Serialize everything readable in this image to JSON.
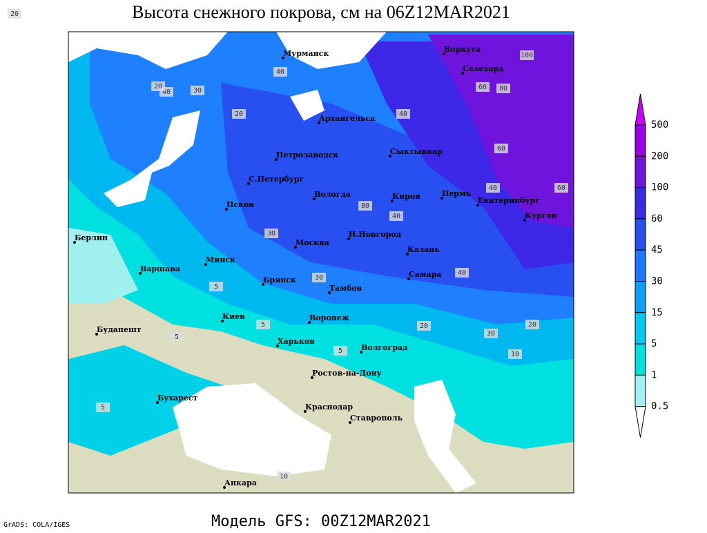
{
  "header": {
    "title": "Высота снежного покрова, см на 06Z12MAR2021"
  },
  "footer": {
    "credit": "GrADS: COLA/IGES",
    "model": "Модель GFS: 00Z12MAR2021"
  },
  "legend": {
    "levels": [
      500,
      200,
      100,
      60,
      45,
      30,
      15,
      5,
      1,
      0.5
    ],
    "colors": [
      "#c800ff",
      "#9a00e6",
      "#6e14dc",
      "#3c28e6",
      "#2850f0",
      "#1e78ff",
      "#0aa0ff",
      "#00c8f0",
      "#00e0e0",
      "#a0f0f0",
      "#ffffff"
    ]
  },
  "cities": [
    "Мурманск",
    "Воркута",
    "Салехард",
    "Архангельск",
    "Сыктывкар",
    "Петрозаводск",
    "С.Петербург",
    "Вологда",
    "Киров",
    "Пермь",
    "Екатеринбург",
    "Курган",
    "Псков",
    "Берлин",
    "Москва",
    "Н.Новгород",
    "Казань",
    "Варшава",
    "Минск",
    "Брянск",
    "Тамбов",
    "Самара",
    "Киев",
    "Воронеж",
    "Будапешт",
    "Харьков",
    "Волгоград",
    "Ростов-на-Дону",
    "Бухарест",
    "Краснодар",
    "Ставрополь",
    "Анкара"
  ],
  "contour_labels": [
    100,
    80,
    60,
    40,
    40,
    30,
    20,
    40,
    60,
    40,
    80,
    60,
    40,
    20,
    30,
    20,
    40,
    30,
    5,
    5,
    5,
    10,
    10,
    20,
    30,
    5,
    5,
    20
  ]
}
